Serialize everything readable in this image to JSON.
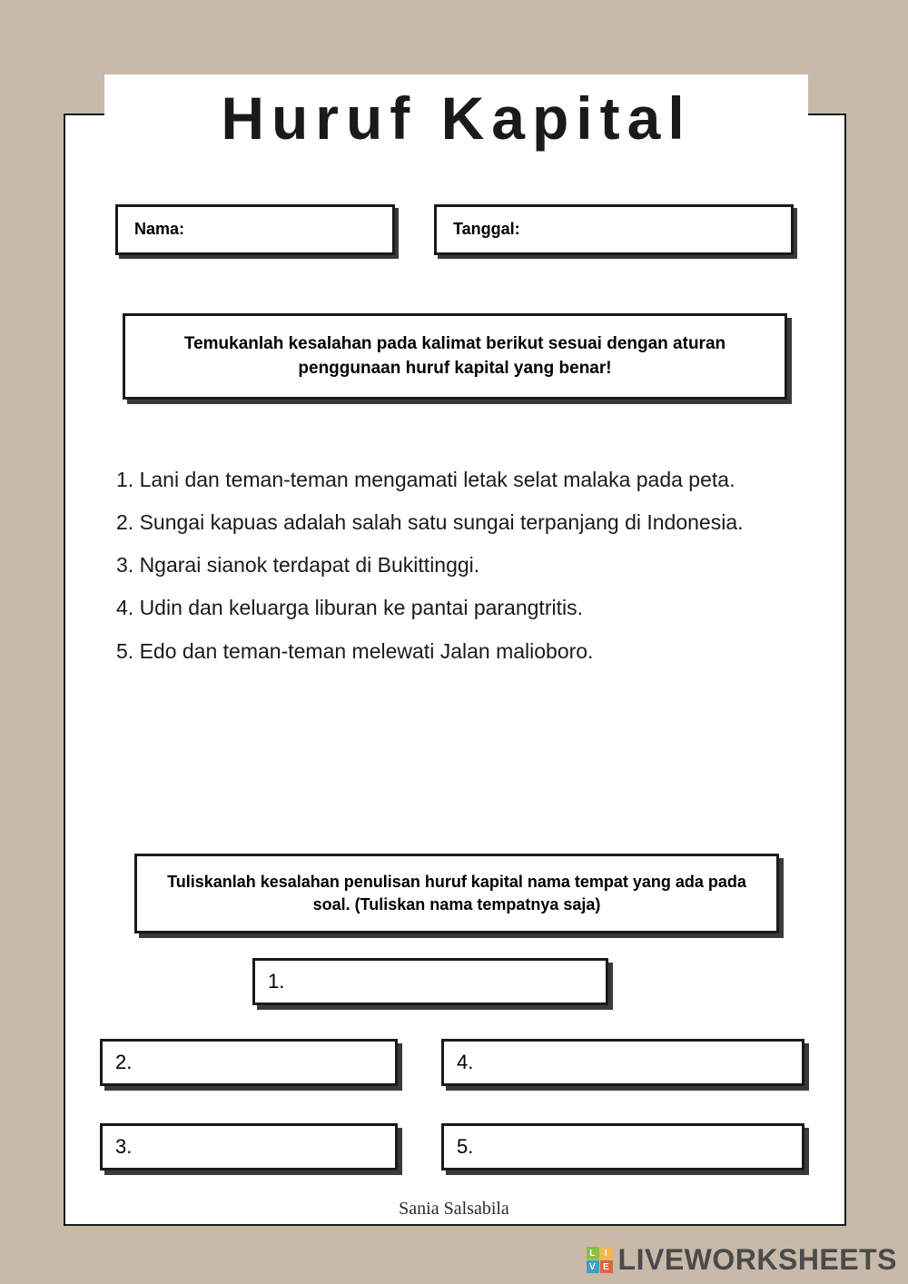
{
  "title": "Huruf Kapital",
  "fields": {
    "name_label": "Nama:",
    "date_label": "Tanggal:"
  },
  "instruction1": "Temukanlah kesalahan pada kalimat berikut sesuai dengan aturan penggunaan huruf kapital yang benar!",
  "questions": {
    "q1": "1. Lani dan teman-teman mengamati letak selat malaka pada peta.",
    "q2": "2. Sungai kapuas adalah salah satu sungai terpanjang di Indonesia.",
    "q3": "3. Ngarai sianok terdapat di Bukittinggi.",
    "q4": "4. Udin dan keluarga liburan ke pantai parangtritis.",
    "q5": "5. Edo dan teman-teman melewati Jalan malioboro."
  },
  "instruction2": "Tuliskanlah kesalahan penulisan huruf kapital nama tempat yang ada pada soal. (Tuliskan nama tempatnya saja)",
  "answers": {
    "a1": "1.",
    "a2": "2.",
    "a3": "3.",
    "a4": "4.",
    "a5": "5."
  },
  "signature": "Sania Salsabila",
  "watermark": {
    "text": "LIVEWORKSHEETS",
    "logo": {
      "tl": "L",
      "tr": "I",
      "bl": "V",
      "br": "E"
    }
  }
}
